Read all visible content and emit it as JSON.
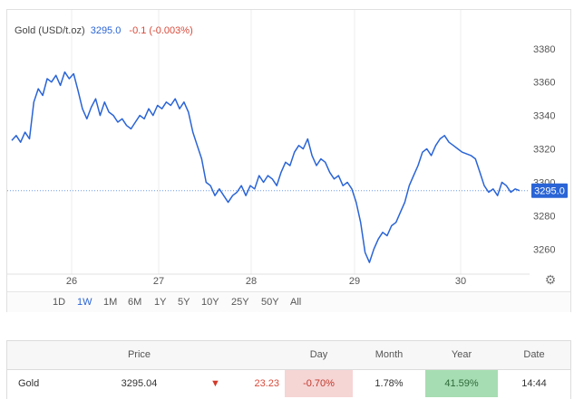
{
  "header": {
    "instrument": "Gold (USD/t.oz)",
    "price": "3295.0",
    "change": "-0.1 (-0.003%)"
  },
  "chart_data": {
    "type": "line",
    "series": [
      {
        "values": [
          3325,
          3328,
          3324,
          3330,
          3326,
          3348,
          3356,
          3352,
          3362,
          3360,
          3364,
          3358,
          3366,
          3362,
          3365,
          3355,
          3344,
          3338,
          3345,
          3350,
          3340,
          3348,
          3342,
          3340,
          3336,
          3338,
          3334,
          3332,
          3336,
          3340,
          3338,
          3344,
          3340,
          3346,
          3344,
          3348,
          3346,
          3350,
          3344,
          3348,
          3342,
          3330,
          3322,
          3314,
          3300,
          3298,
          3292,
          3296,
          3292,
          3288,
          3292,
          3294,
          3298,
          3292,
          3298,
          3296,
          3304,
          3300,
          3304,
          3302,
          3298,
          3306,
          3312,
          3310,
          3318,
          3322,
          3320,
          3326,
          3316,
          3310,
          3314,
          3312,
          3306,
          3302,
          3304,
          3298,
          3300,
          3296,
          3288,
          3276,
          3258,
          3252,
          3260,
          3266,
          3270,
          3268,
          3274,
          3276,
          3282,
          3288,
          3298,
          3304,
          3310,
          3318,
          3320,
          3316,
          3322,
          3326,
          3328,
          3324,
          3322,
          3320,
          3318,
          3317,
          3316,
          3314,
          3306,
          3298,
          3294,
          3296,
          3292,
          3300,
          3298,
          3294,
          3296,
          3295
        ],
        "color": "#2a64d6"
      }
    ],
    "x_tick_labels": [
      "26",
      "27",
      "28",
      "29",
      "30"
    ],
    "y_tick_labels": [
      "3380",
      "3360",
      "3340",
      "3320",
      "3300",
      "3280",
      "3260"
    ],
    "ylim": [
      3245,
      3388
    ],
    "reference_line": 3295.0,
    "current_price_label": "3295.0",
    "grid": "vertical"
  },
  "periods": [
    "1D",
    "1W",
    "1M",
    "6M",
    "1Y",
    "5Y",
    "10Y",
    "25Y",
    "50Y",
    "All"
  ],
  "active_period": "1W",
  "table": {
    "headers": [
      "Price",
      "Day",
      "Month",
      "Year",
      "Date"
    ],
    "row": {
      "name": "Gold",
      "price": "3295.04",
      "change": "23.23",
      "day": "-0.70%",
      "month": "1.78%",
      "year": "41.59%",
      "date": "14:44"
    }
  },
  "icons": {
    "settings": "gear-icon",
    "trend": "down-triangle-icon"
  }
}
